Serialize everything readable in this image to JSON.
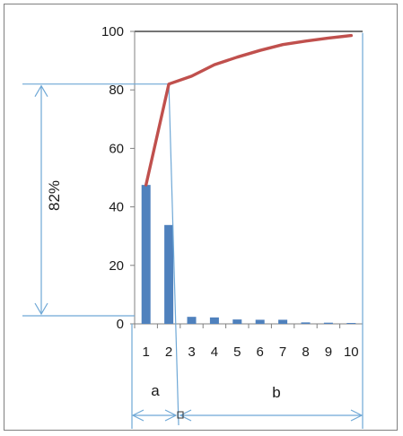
{
  "chart_data": {
    "type": "bar",
    "categories": [
      "1",
      "2",
      "3",
      "4",
      "5",
      "6",
      "7",
      "8",
      "9",
      "10"
    ],
    "series": [
      {
        "type": "bar",
        "values": [
          47.5,
          33.8,
          2.4,
          2.2,
          1.5,
          1.4,
          1.4,
          0.5,
          0.4,
          0.3
        ]
      },
      {
        "type": "line",
        "values": [
          47.5,
          82,
          84.7,
          88.6,
          91.2,
          93.5,
          95.5,
          96.7,
          97.7,
          98.6
        ]
      }
    ],
    "yticks": [
      "0",
      "20",
      "40",
      "60",
      "80",
      "100"
    ],
    "ylim": [
      0,
      100
    ],
    "annotations": {
      "percent_label": "82%",
      "region_a": "a",
      "region_b": "b"
    },
    "colors": {
      "bar": "#4f81bd",
      "line": "#c0504d",
      "annotation": "#6fa8d6",
      "axis": "#808080"
    }
  }
}
